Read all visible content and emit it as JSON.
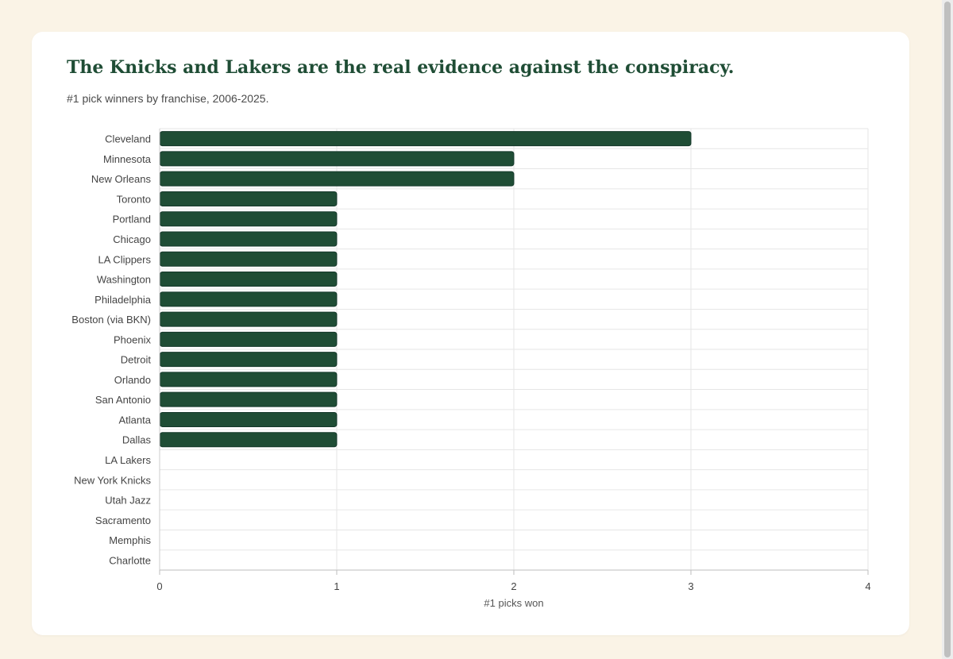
{
  "chart_data": {
    "type": "bar",
    "orientation": "horizontal",
    "title": "The Knicks and Lakers are the real evidence against the conspiracy.",
    "subtitle": "#1 pick winners by franchise, 2006-2025.",
    "xlabel": "#1 picks won",
    "ylabel": "",
    "xlim": [
      0,
      4
    ],
    "xticks": [
      "0",
      "1",
      "2",
      "3",
      "4"
    ],
    "grid": true,
    "bar_color": "#1f4d35",
    "categories": [
      "Cleveland",
      "Minnesota",
      "New Orleans",
      "Toronto",
      "Portland",
      "Chicago",
      "LA Clippers",
      "Washington",
      "Philadelphia",
      "Boston (via BKN)",
      "Phoenix",
      "Detroit",
      "Orlando",
      "San Antonio",
      "Atlanta",
      "Dallas",
      "LA Lakers",
      "New York Knicks",
      "Utah Jazz",
      "Sacramento",
      "Memphis",
      "Charlotte"
    ],
    "values": [
      3,
      2,
      2,
      1,
      1,
      1,
      1,
      1,
      1,
      1,
      1,
      1,
      1,
      1,
      1,
      1,
      0,
      0,
      0,
      0,
      0,
      0
    ]
  }
}
